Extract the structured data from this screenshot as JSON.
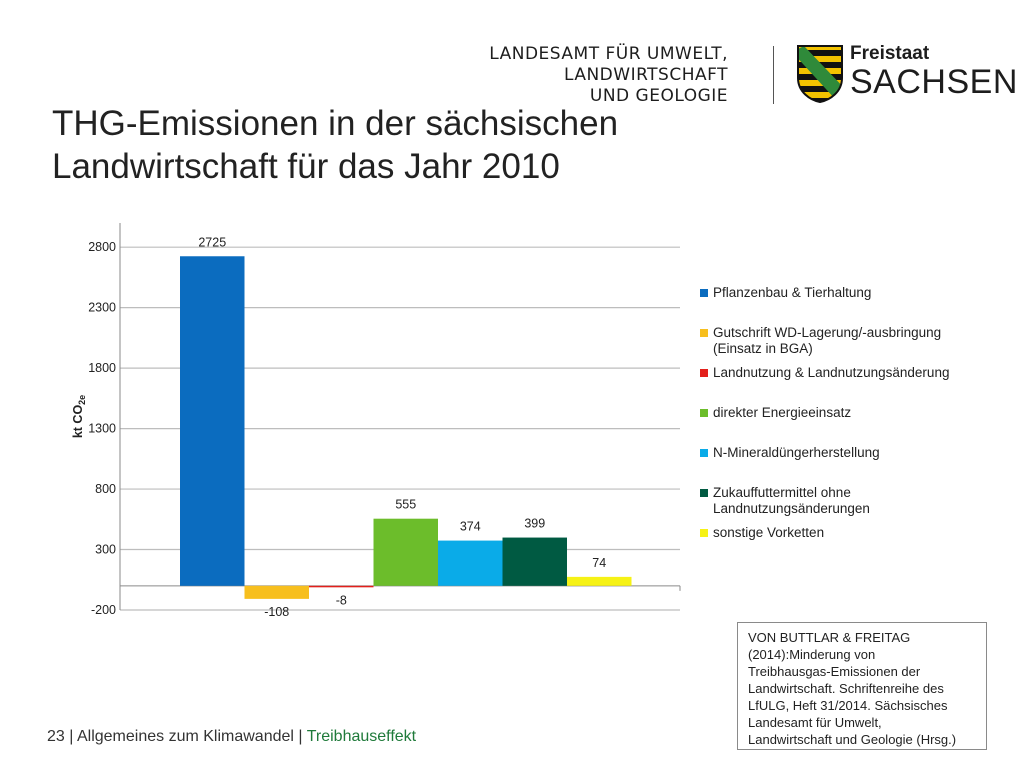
{
  "header": {
    "agency_lines": [
      "LANDESAMT FÜR UMWELT,",
      "LANDWIRTSCHAFT",
      "UND GEOLOGIE"
    ],
    "state_top": "Freistaat",
    "state_main": "SACHSEN"
  },
  "title_lines": [
    "THG-Emissionen in der sächsischen",
    "Landwirtschaft für das Jahr 2010"
  ],
  "colors": {
    "gridline": "#bdbdbd",
    "axis": "#8a8a8a",
    "crest_yellow": "#f2c200",
    "crest_green": "#2f8a3a",
    "footer_highlight": "#1f7a3a"
  },
  "chart_data": {
    "type": "bar",
    "ylabel": "kt CO2e",
    "ylim": [
      -200,
      3000
    ],
    "yticks": [
      -200,
      300,
      800,
      1300,
      1800,
      2300,
      2800
    ],
    "grid": true,
    "legend_position": "right",
    "series": [
      {
        "name": "Pflanzenbau & Tierhaltung",
        "value": 2725,
        "label": "2725",
        "color": "#0b6cbf"
      },
      {
        "name": "Gutschrift WD-Lagerung/-ausbringung (Einsatz in BGA)",
        "value": -108,
        "label": "-108",
        "color": "#f7bf1e"
      },
      {
        "name": "Landnutzung & Landnutzungsänderung",
        "value": -8,
        "label": "-8",
        "color": "#e3201b"
      },
      {
        "name": "direkter Energieeinsatz",
        "value": 555,
        "label": "555",
        "color": "#6cbd2b"
      },
      {
        "name": "N-Mineraldüngerherstellung",
        "value": 374,
        "label": "374",
        "color": "#0aabe8"
      },
      {
        "name": "Zukauffuttermittel ohne Landnutzungsänderungen",
        "value": 399,
        "label": "399",
        "color": "#005a42"
      },
      {
        "name": "sonstige Vorketten",
        "value": 74,
        "label": "74",
        "color": "#f6f215"
      }
    ]
  },
  "source": {
    "lines": [
      "VON BUTTLAR & FREITAG",
      "(2014):Minderung von",
      "Treibhausgas-Emissionen der",
      "Landwirtschaft. Schriftenreihe des",
      "LfULG, Heft 31/2014. Sächsisches",
      "Landesamt für Umwelt,",
      "Landwirtschaft und Geologie (Hrsg.)"
    ]
  },
  "footer": {
    "prefix": "23 | Allgemeines zum Klimawandel | ",
    "highlight": "Treibhauseffekt"
  }
}
